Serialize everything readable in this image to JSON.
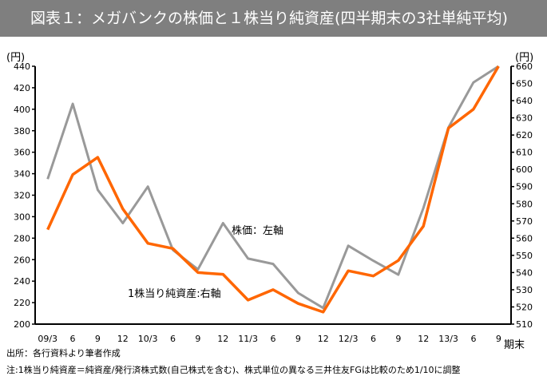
{
  "chart_data": {
    "type": "line",
    "title": "図表１：メガバンクの株価と１株当り純資産(四半期末の3社単純平均)",
    "categories": [
      "09/3",
      "6",
      "9",
      "12",
      "10/3",
      "6",
      "9",
      "12",
      "11/3",
      "6",
      "9",
      "12",
      "12/3",
      "6",
      "9",
      "12",
      "13/3",
      "6",
      "9"
    ],
    "xlabel": "期末",
    "y_left": {
      "label": "(円)",
      "range": [
        200,
        440
      ],
      "ticks": [
        200,
        220,
        240,
        260,
        280,
        300,
        320,
        340,
        360,
        380,
        400,
        420,
        440
      ]
    },
    "y_right": {
      "label": "(円)",
      "range": [
        510,
        660
      ],
      "ticks": [
        510,
        520,
        530,
        540,
        550,
        560,
        570,
        580,
        590,
        600,
        610,
        620,
        630,
        640,
        650,
        660
      ]
    },
    "grid": false,
    "series": [
      {
        "name": "株価：左軸",
        "axis": "left",
        "color": "#999999",
        "values": [
          335,
          405,
          325,
          294,
          328,
          269,
          251,
          294,
          261,
          256,
          229,
          215,
          273,
          259,
          246,
          308,
          383,
          425,
          440
        ]
      },
      {
        "name": "1株当り純資産:右軸",
        "axis": "right",
        "color": "#ff6600",
        "values": [
          565,
          597,
          607,
          577,
          557,
          554,
          540,
          539,
          524,
          530,
          522,
          517,
          541,
          538,
          547,
          567,
          624,
          635,
          660
        ]
      }
    ]
  },
  "footer": {
    "source": "出所：各行資料より筆者作成",
    "note": "注:1株当り純資産＝純資産/発行済株式数(自己株式を含む)、株式単位の異なる三井住友FGは比較のため1/10に調整"
  }
}
